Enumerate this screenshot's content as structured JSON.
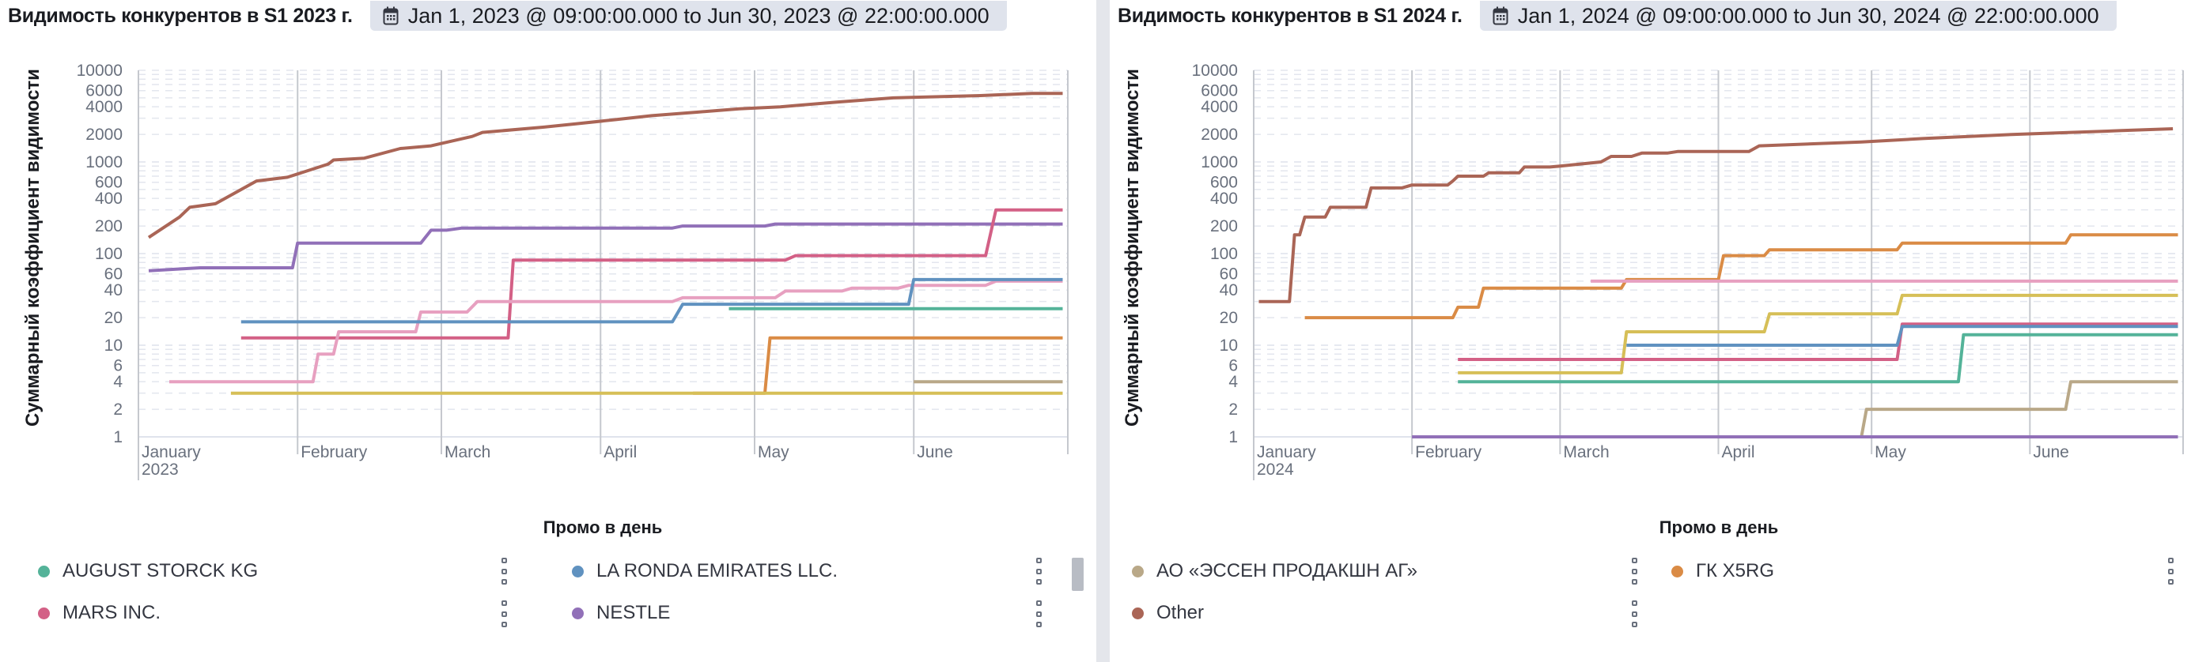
{
  "panels": [
    {
      "title": "Видимость конкурентов в S1 2023 г.",
      "date_range": "Jan 1, 2023 @ 09:00:00.000 to Jun 30, 2023 @ 22:00:00.000",
      "calendar_icon": "calendar-icon",
      "ylabel": "Суммарный коэффициент видимости",
      "xlabel": "Промо в день",
      "legend": [
        {
          "label": "AUGUST STORCK KG",
          "color": "#54b399"
        },
        {
          "label": "LA RONDA EMIRATES LLC.",
          "color": "#6092c0"
        },
        {
          "label": "MARS INC.",
          "color": "#d36086"
        },
        {
          "label": "NESTLE",
          "color": "#9170b8"
        }
      ]
    },
    {
      "title": "Видимость конкурентов в S1 2024 г.",
      "date_range": "Jan 1, 2024 @ 09:00:00.000 to Jun 30, 2024 @ 22:00:00.000",
      "calendar_icon": "calendar-icon",
      "ylabel": "Суммарный коэффициент видимости",
      "xlabel": "Промо в день",
      "legend": [
        {
          "label": "АО «ЭССЕН ПРОДАКШН АГ»",
          "color": "#b9a888"
        },
        {
          "label": "ГК X5RG",
          "color": "#da8b45"
        },
        {
          "label": "Other",
          "color": "#aa6556"
        }
      ]
    }
  ],
  "chart_data": [
    {
      "type": "line",
      "step": true,
      "title": "Видимость конкурентов в S1 2023 г.",
      "xlabel": "Промо в день",
      "ylabel": "Суммарный коэффициент видимости",
      "yscale": "log",
      "ylim": [
        1,
        10000
      ],
      "yticks": [
        1,
        2,
        4,
        6,
        10,
        20,
        40,
        60,
        100,
        200,
        400,
        600,
        1000,
        2000,
        4000,
        6000,
        10000
      ],
      "xticks": [
        {
          "day": 0,
          "label": "January",
          "sub": "2023"
        },
        {
          "day": 31,
          "label": "February"
        },
        {
          "day": 59,
          "label": "March"
        },
        {
          "day": 90,
          "label": "April"
        },
        {
          "day": 120,
          "label": "May"
        },
        {
          "day": 151,
          "label": "June"
        }
      ],
      "x_unit": "day of period",
      "xlim": [
        0,
        181
      ],
      "grid": true,
      "legend_position": "bottom",
      "series": [
        {
          "name": "Other",
          "color": "#aa6556",
          "points": [
            [
              2,
              150
            ],
            [
              8,
              250
            ],
            [
              10,
              320
            ],
            [
              15,
              350
            ],
            [
              23,
              620
            ],
            [
              29,
              680
            ],
            [
              37,
              950
            ],
            [
              38,
              1050
            ],
            [
              44,
              1100
            ],
            [
              51,
              1400
            ],
            [
              57,
              1500
            ],
            [
              65,
              1900
            ],
            [
              67,
              2100
            ],
            [
              79,
              2400
            ],
            [
              85,
              2600
            ],
            [
              93,
              2900
            ],
            [
              100,
              3200
            ],
            [
              109,
              3500
            ],
            [
              117,
              3800
            ],
            [
              125,
              4000
            ],
            [
              136,
              4500
            ],
            [
              147,
              5000
            ],
            [
              164,
              5300
            ],
            [
              174,
              5600
            ],
            [
              180,
              5600
            ]
          ]
        },
        {
          "name": "NESTLE",
          "color": "#9170b8",
          "points": [
            [
              2,
              65
            ],
            [
              12,
              70
            ],
            [
              30,
              70
            ],
            [
              31,
              130
            ],
            [
              55,
              130
            ],
            [
              57,
              180
            ],
            [
              60,
              180
            ],
            [
              63,
              190
            ],
            [
              104,
              190
            ],
            [
              106,
              200
            ],
            [
              122,
              200
            ],
            [
              124,
              210
            ],
            [
              151,
              210
            ],
            [
              180,
              210
            ]
          ]
        },
        {
          "name": "MARS INC.",
          "color": "#d36086",
          "points": [
            [
              20,
              12
            ],
            [
              72,
              12
            ],
            [
              73,
              85
            ],
            [
              126,
              85
            ],
            [
              128,
              95
            ],
            [
              165,
              95
            ],
            [
              167,
              300
            ],
            [
              180,
              300
            ]
          ]
        },
        {
          "name": "(pink series)",
          "color": "#e7a0c0",
          "points": [
            [
              6,
              4
            ],
            [
              34,
              4
            ],
            [
              35,
              8
            ],
            [
              38,
              8
            ],
            [
              39,
              14
            ],
            [
              54,
              14
            ],
            [
              55,
              23
            ],
            [
              64,
              23
            ],
            [
              66,
              30
            ],
            [
              104,
              30
            ],
            [
              106,
              33
            ],
            [
              124,
              33
            ],
            [
              126,
              39
            ],
            [
              137,
              39
            ],
            [
              139,
              42
            ],
            [
              148,
              42
            ],
            [
              150,
              45
            ],
            [
              165,
              45
            ],
            [
              167,
              50
            ],
            [
              180,
              50
            ]
          ]
        },
        {
          "name": "LA RONDA EMIRATES LLC.",
          "color": "#6092c0",
          "points": [
            [
              20,
              18
            ],
            [
              104,
              18
            ],
            [
              106,
              28
            ],
            [
              150,
              28
            ],
            [
              151,
              52
            ],
            [
              166,
              52
            ],
            [
              180,
              52
            ]
          ]
        },
        {
          "name": "AUGUST STORCK KG",
          "color": "#54b399",
          "points": [
            [
              115,
              25
            ],
            [
              180,
              25
            ]
          ]
        },
        {
          "name": "(orange series)",
          "color": "#da8b45",
          "points": [
            [
              108,
              3
            ],
            [
              122,
              3
            ],
            [
              123,
              12
            ],
            [
              180,
              12
            ]
          ]
        },
        {
          "name": "(yellow series)",
          "color": "#d6bf57",
          "points": [
            [
              18,
              3
            ],
            [
              180,
              3
            ]
          ]
        },
        {
          "name": "(tan series)",
          "color": "#b9a888",
          "points": [
            [
              151,
              4
            ],
            [
              180,
              4
            ]
          ]
        }
      ]
    },
    {
      "type": "line",
      "step": true,
      "title": "Видимость конкурентов в S1 2024 г.",
      "xlabel": "Промо в день",
      "ylabel": "Суммарный коэффициент видимости",
      "yscale": "log",
      "ylim": [
        1,
        10000
      ],
      "yticks": [
        1,
        2,
        4,
        6,
        10,
        20,
        40,
        60,
        100,
        200,
        400,
        600,
        1000,
        2000,
        4000,
        6000,
        10000
      ],
      "xticks": [
        {
          "day": 0,
          "label": "January",
          "sub": "2024"
        },
        {
          "day": 31,
          "label": "February"
        },
        {
          "day": 60,
          "label": "March"
        },
        {
          "day": 91,
          "label": "April"
        },
        {
          "day": 121,
          "label": "May"
        },
        {
          "day": 152,
          "label": "June"
        }
      ],
      "x_unit": "day of period",
      "xlim": [
        0,
        182
      ],
      "grid": true,
      "legend_position": "bottom",
      "series": [
        {
          "name": "Other",
          "color": "#aa6556",
          "points": [
            [
              1,
              30
            ],
            [
              7,
              30
            ],
            [
              8,
              160
            ],
            [
              9,
              160
            ],
            [
              10,
              250
            ],
            [
              14,
              250
            ],
            [
              15,
              320
            ],
            [
              22,
              320
            ],
            [
              23,
              520
            ],
            [
              29,
              520
            ],
            [
              31,
              560
            ],
            [
              38,
              560
            ],
            [
              39,
              620
            ],
            [
              40,
              700
            ],
            [
              45,
              700
            ],
            [
              46,
              760
            ],
            [
              52,
              760
            ],
            [
              53,
              880
            ],
            [
              58,
              880
            ],
            [
              60,
              900
            ],
            [
              64,
              950
            ],
            [
              68,
              1000
            ],
            [
              70,
              1150
            ],
            [
              74,
              1150
            ],
            [
              76,
              1250
            ],
            [
              81,
              1250
            ],
            [
              83,
              1300
            ],
            [
              97,
              1300
            ],
            [
              99,
              1500
            ],
            [
              119,
              1650
            ],
            [
              131,
              1800
            ],
            [
              140,
              1900
            ],
            [
              149,
              2000
            ],
            [
              160,
              2100
            ],
            [
              170,
              2200
            ],
            [
              180,
              2300
            ]
          ]
        },
        {
          "name": "ГК X5RG",
          "color": "#da8b45",
          "points": [
            [
              10,
              20
            ],
            [
              39,
              20
            ],
            [
              40,
              26
            ],
            [
              44,
              26
            ],
            [
              45,
              42
            ],
            [
              72,
              42
            ],
            [
              73,
              52
            ],
            [
              91,
              52
            ],
            [
              92,
              95
            ],
            [
              100,
              95
            ],
            [
              101,
              110
            ],
            [
              126,
              110
            ],
            [
              127,
              130
            ],
            [
              159,
              130
            ],
            [
              160,
              160
            ],
            [
              181,
              160
            ]
          ]
        },
        {
          "name": "(pink series)",
          "color": "#e7a0c0",
          "points": [
            [
              66,
              50
            ],
            [
              181,
              50
            ]
          ]
        },
        {
          "name": "(yellow series)",
          "color": "#d6bf57",
          "points": [
            [
              40,
              5
            ],
            [
              72,
              5
            ],
            [
              73,
              14
            ],
            [
              100,
              14
            ],
            [
              101,
              22
            ],
            [
              126,
              22
            ],
            [
              127,
              35
            ],
            [
              181,
              35
            ]
          ]
        },
        {
          "name": "MARS INC.",
          "color": "#d36086",
          "points": [
            [
              40,
              7
            ],
            [
              126,
              7
            ],
            [
              127,
              17
            ],
            [
              181,
              17
            ]
          ]
        },
        {
          "name": "LA RONDA EMIRATES LLC.",
          "color": "#6092c0",
          "points": [
            [
              73,
              10
            ],
            [
              126,
              10
            ],
            [
              127,
              16
            ],
            [
              181,
              16
            ]
          ]
        },
        {
          "name": "AUGUST STORCK KG",
          "color": "#54b399",
          "points": [
            [
              40,
              4
            ],
            [
              138,
              4
            ],
            [
              139,
              13
            ],
            [
              181,
              13
            ]
          ]
        },
        {
          "name": "АО «ЭССЕН ПРОДАКШН АГ»",
          "color": "#b9a888",
          "points": [
            [
              105,
              1
            ],
            [
              119,
              1
            ],
            [
              120,
              2
            ],
            [
              159,
              2
            ],
            [
              160,
              4
            ],
            [
              181,
              4
            ]
          ]
        },
        {
          "name": "NESTLE",
          "color": "#9170b8",
          "points": [
            [
              31,
              1
            ],
            [
              181,
              1
            ]
          ]
        }
      ]
    }
  ]
}
